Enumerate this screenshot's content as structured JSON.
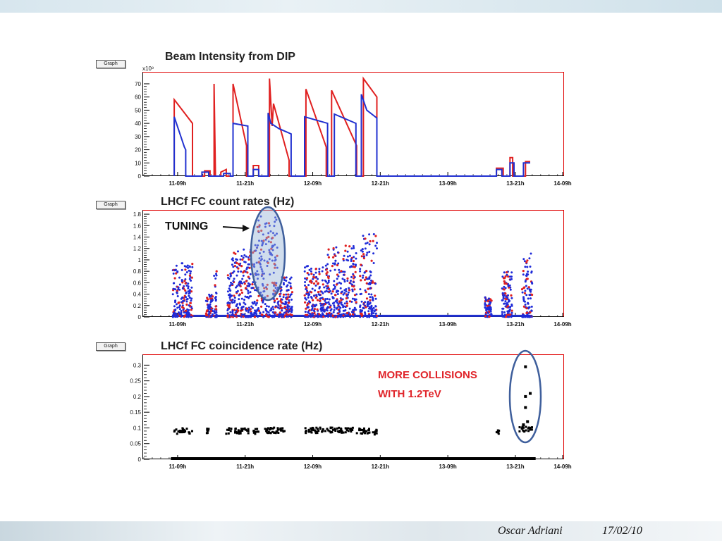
{
  "graph_button_label": "Graph",
  "footer": {
    "author": "Oscar Adriani",
    "date": "17/02/10"
  },
  "annotations": {
    "tuning": "TUNING",
    "more_collisions_line1": "MORE COLLISIONS",
    "more_collisions_line2": "WITH 1.2TeV"
  },
  "chart_data": [
    {
      "type": "line",
      "title": "Beam Intensity from DIP",
      "y_multiplier": "x10⁹",
      "ylim": [
        0,
        78
      ],
      "yticks": [
        0,
        10,
        20,
        30,
        40,
        50,
        60,
        70
      ],
      "xlim": [
        0,
        6.2
      ],
      "x_ticks": [
        {
          "v": 0.5,
          "label": "11-09h"
        },
        {
          "v": 1.5,
          "label": "11-21h"
        },
        {
          "v": 2.5,
          "label": "12-09h"
        },
        {
          "v": 3.5,
          "label": "12-21h"
        },
        {
          "v": 4.5,
          "label": "13-09h"
        },
        {
          "v": 5.5,
          "label": "13-21h"
        },
        {
          "v": 6.5,
          "label": "14-09h"
        }
      ],
      "series": [
        {
          "color": "#e02020",
          "points": [
            [
              0.45,
              0
            ],
            [
              0.45,
              58
            ],
            [
              0.72,
              40
            ],
            [
              0.72,
              0
            ],
            [
              0.9,
              0
            ],
            [
              0.9,
              4
            ],
            [
              0.98,
              4
            ],
            [
              0.98,
              0
            ],
            [
              1.04,
              0
            ],
            [
              1.04,
              70
            ],
            [
              1.06,
              0
            ],
            [
              1.14,
              0
            ],
            [
              1.14,
              3
            ],
            [
              1.22,
              5
            ],
            [
              1.22,
              0
            ],
            [
              1.32,
              0
            ],
            [
              1.32,
              70
            ],
            [
              1.52,
              23
            ],
            [
              1.52,
              0
            ],
            [
              1.62,
              0
            ],
            [
              1.62,
              8
            ],
            [
              1.7,
              8
            ],
            [
              1.7,
              0
            ],
            [
              1.86,
              0
            ],
            [
              1.86,
              74
            ],
            [
              1.9,
              38
            ],
            [
              1.92,
              55
            ],
            [
              2.15,
              12
            ],
            [
              2.15,
              0
            ],
            [
              2.4,
              0
            ],
            [
              2.4,
              66
            ],
            [
              2.7,
              22
            ],
            [
              2.7,
              0
            ],
            [
              2.78,
              0
            ],
            [
              2.78,
              65
            ],
            [
              3.15,
              23
            ],
            [
              3.15,
              0
            ],
            [
              3.25,
              0
            ],
            [
              3.25,
              74
            ],
            [
              3.45,
              60
            ],
            [
              3.45,
              0
            ],
            [
              3.5,
              0
            ],
            [
              5.0,
              0
            ],
            [
              5.22,
              0
            ],
            [
              5.22,
              6
            ],
            [
              5.32,
              6
            ],
            [
              5.32,
              0
            ],
            [
              5.42,
              0
            ],
            [
              5.42,
              14
            ],
            [
              5.46,
              14
            ],
            [
              5.46,
              0
            ],
            [
              5.65,
              0
            ],
            [
              5.65,
              11
            ],
            [
              5.72,
              11
            ]
          ]
        },
        {
          "color": "#2030d0",
          "points": [
            [
              0.45,
              0
            ],
            [
              0.45,
              45
            ],
            [
              0.6,
              22
            ],
            [
              0.62,
              20
            ],
            [
              0.62,
              0
            ],
            [
              0.86,
              0
            ],
            [
              0.86,
              3
            ],
            [
              0.96,
              3
            ],
            [
              0.96,
              0
            ],
            [
              1.18,
              0
            ],
            [
              1.18,
              2
            ],
            [
              1.28,
              2
            ],
            [
              1.28,
              0
            ],
            [
              1.32,
              0
            ],
            [
              1.32,
              40
            ],
            [
              1.54,
              38
            ],
            [
              1.54,
              0
            ],
            [
              1.62,
              0
            ],
            [
              1.62,
              5
            ],
            [
              1.7,
              5
            ],
            [
              1.7,
              0
            ],
            [
              1.84,
              0
            ],
            [
              1.84,
              48
            ],
            [
              1.88,
              40
            ],
            [
              2.0,
              36
            ],
            [
              2.18,
              32
            ],
            [
              2.18,
              0
            ],
            [
              2.3,
              0
            ],
            [
              2.38,
              0
            ],
            [
              2.38,
              45
            ],
            [
              2.72,
              40
            ],
            [
              2.72,
              0
            ],
            [
              2.82,
              0
            ],
            [
              2.82,
              47
            ],
            [
              3.14,
              40
            ],
            [
              3.14,
              0
            ],
            [
              3.22,
              0
            ],
            [
              3.22,
              62
            ],
            [
              3.3,
              50
            ],
            [
              3.45,
              44
            ],
            [
              3.45,
              0
            ],
            [
              5.22,
              0
            ],
            [
              5.22,
              5
            ],
            [
              5.3,
              5
            ],
            [
              5.3,
              0
            ],
            [
              5.42,
              0
            ],
            [
              5.42,
              10
            ],
            [
              5.48,
              10
            ],
            [
              5.48,
              0
            ],
            [
              5.62,
              0
            ],
            [
              5.62,
              10
            ],
            [
              5.72,
              10
            ]
          ]
        }
      ]
    },
    {
      "type": "scatter",
      "title": "LHCf FC count rates (Hz)",
      "ylim": [
        0,
        1.85
      ],
      "yticks": [
        0,
        0.2,
        0.4,
        0.6,
        0.8,
        1,
        1.2,
        1.4,
        1.6,
        1.8
      ],
      "xlim": [
        0,
        6.2
      ],
      "x_ticks": [
        {
          "v": 0.5,
          "label": "11-09h"
        },
        {
          "v": 1.5,
          "label": "11-21h"
        },
        {
          "v": 2.5,
          "label": "12-09h"
        },
        {
          "v": 3.5,
          "label": "12-21h"
        },
        {
          "v": 4.5,
          "label": "13-09h"
        },
        {
          "v": 5.5,
          "label": "13-21h"
        },
        {
          "v": 6.5,
          "label": "14-09h"
        }
      ],
      "baseline": 0.02,
      "clusters": [
        {
          "x0": 0.43,
          "x1": 0.72,
          "ymax": 0.95
        },
        {
          "x0": 0.92,
          "x1": 1.02,
          "ymax": 0.4
        },
        {
          "x0": 1.04,
          "x1": 1.08,
          "ymax": 0.85
        },
        {
          "x0": 1.24,
          "x1": 1.3,
          "ymax": 0.8
        },
        {
          "x0": 1.3,
          "x1": 1.65,
          "ymax": 1.2
        },
        {
          "x0": 1.65,
          "x1": 1.98,
          "ymax": 1.8
        },
        {
          "x0": 1.98,
          "x1": 2.2,
          "ymax": 0.7
        },
        {
          "x0": 2.38,
          "x1": 2.72,
          "ymax": 0.9
        },
        {
          "x0": 2.72,
          "x1": 3.15,
          "ymax": 1.25
        },
        {
          "x0": 3.2,
          "x1": 3.45,
          "ymax": 1.45
        },
        {
          "x0": 5.05,
          "x1": 5.15,
          "ymax": 0.35
        },
        {
          "x0": 5.3,
          "x1": 5.45,
          "ymax": 0.8
        },
        {
          "x0": 5.6,
          "x1": 5.75,
          "ymax": 1.2
        }
      ]
    },
    {
      "type": "scatter",
      "title": "LHCf FC coincidence rate (Hz)",
      "ylim": [
        0,
        0.33
      ],
      "yticks": [
        0,
        0.05,
        0.1,
        0.15,
        0.2,
        0.25,
        0.3
      ],
      "xlim": [
        0,
        6.2
      ],
      "x_ticks": [
        {
          "v": 0.5,
          "label": "11-09h"
        },
        {
          "v": 1.5,
          "label": "11-21h"
        },
        {
          "v": 2.5,
          "label": "12-09h"
        },
        {
          "v": 3.5,
          "label": "12-21h"
        },
        {
          "v": 4.5,
          "label": "13-09h"
        },
        {
          "v": 5.5,
          "label": "13-21h"
        },
        {
          "v": 6.5,
          "label": "14-09h"
        }
      ],
      "clusters": [
        {
          "x0": 0.45,
          "x1": 0.72,
          "y": 0.09
        },
        {
          "x0": 0.92,
          "x1": 0.96,
          "y": 0.09
        },
        {
          "x0": 1.22,
          "x1": 1.55,
          "y": 0.09
        },
        {
          "x0": 1.62,
          "x1": 1.7,
          "y": 0.09
        },
        {
          "x0": 1.78,
          "x1": 2.1,
          "y": 0.092
        },
        {
          "x0": 2.38,
          "x1": 2.72,
          "y": 0.092
        },
        {
          "x0": 2.72,
          "x1": 3.1,
          "y": 0.093
        },
        {
          "x0": 3.15,
          "x1": 3.35,
          "y": 0.09
        },
        {
          "x0": 3.38,
          "x1": 3.45,
          "y": 0.085
        },
        {
          "x0": 5.22,
          "x1": 5.26,
          "y": 0.085
        },
        {
          "x0": 5.55,
          "x1": 5.75,
          "y": 0.095
        }
      ],
      "outliers": [
        [
          5.65,
          0.295
        ],
        [
          5.65,
          0.2
        ],
        [
          5.72,
          0.21
        ],
        [
          5.65,
          0.165
        ],
        [
          5.68,
          0.12
        ],
        [
          5.62,
          0.11
        ]
      ],
      "baseline_range": [
        0.4,
        5.8
      ]
    }
  ]
}
